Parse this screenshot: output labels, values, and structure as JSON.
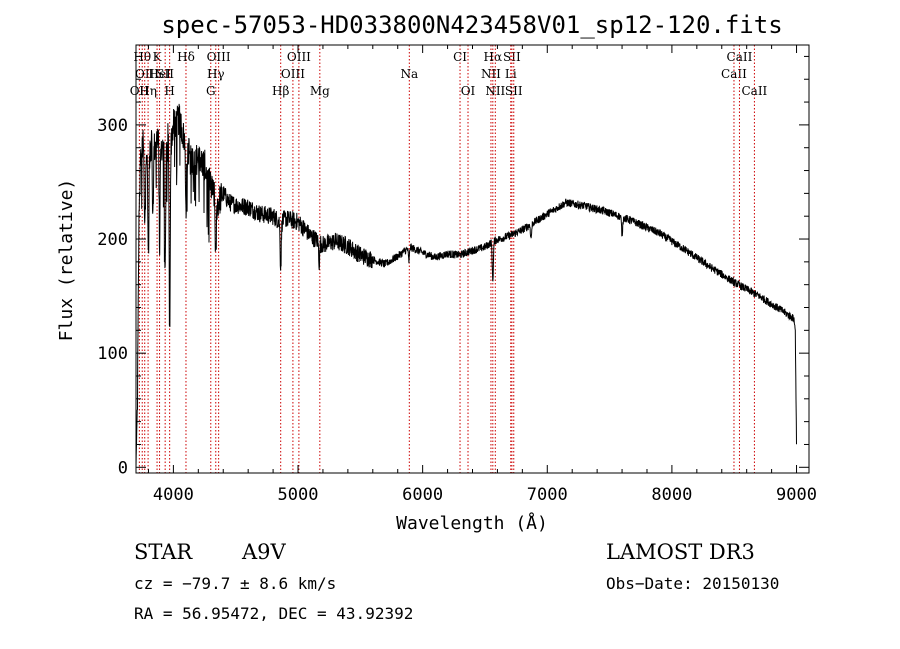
{
  "chart_data": {
    "type": "line",
    "title": "spec-57053-HD033800N423458V01_sp12-120.fits",
    "xlabel": "Wavelength (Å)",
    "ylabel": "Flux (relative)",
    "xlim": [
      3700,
      9100
    ],
    "ylim": [
      -5,
      370
    ],
    "xticks": [
      4000,
      5000,
      6000,
      7000,
      8000,
      9000
    ],
    "yticks": [
      0,
      100,
      200,
      300
    ],
    "spectrum_anchors": [
      [
        3700,
        0
      ],
      [
        3712,
        60
      ],
      [
        3725,
        230
      ],
      [
        3740,
        275
      ],
      [
        3760,
        285
      ],
      [
        3790,
        280
      ],
      [
        3810,
        270
      ],
      [
        3830,
        300
      ],
      [
        3850,
        280
      ],
      [
        3860,
        280
      ],
      [
        3880,
        300
      ],
      [
        3900,
        280
      ],
      [
        3920,
        285
      ],
      [
        3940,
        280
      ],
      [
        3960,
        295
      ],
      [
        3980,
        285
      ],
      [
        4000,
        300
      ],
      [
        4050,
        305
      ],
      [
        4080,
        290
      ],
      [
        4100,
        285
      ],
      [
        4150,
        270
      ],
      [
        4200,
        270
      ],
      [
        4250,
        265
      ],
      [
        4300,
        245
      ],
      [
        4340,
        235
      ],
      [
        4360,
        232
      ],
      [
        4400,
        240
      ],
      [
        4450,
        232
      ],
      [
        4500,
        230
      ],
      [
        4600,
        228
      ],
      [
        4700,
        222
      ],
      [
        4800,
        220
      ],
      [
        4860,
        215
      ],
      [
        4900,
        218
      ],
      [
        5000,
        215
      ],
      [
        5100,
        203
      ],
      [
        5200,
        195
      ],
      [
        5300,
        198
      ],
      [
        5400,
        194
      ],
      [
        5500,
        186
      ],
      [
        5600,
        182
      ],
      [
        5700,
        178
      ],
      [
        5800,
        185
      ],
      [
        5900,
        193
      ],
      [
        6000,
        188
      ],
      [
        6100,
        184
      ],
      [
        6200,
        187
      ],
      [
        6300,
        186
      ],
      [
        6400,
        190
      ],
      [
        6500,
        193
      ],
      [
        6563,
        198
      ],
      [
        6700,
        203
      ],
      [
        6800,
        208
      ],
      [
        7000,
        222
      ],
      [
        7150,
        232
      ],
      [
        7300,
        229
      ],
      [
        7500,
        223
      ],
      [
        7700,
        215
      ],
      [
        7900,
        205
      ],
      [
        8100,
        191
      ],
      [
        8300,
        176
      ],
      [
        8500,
        162
      ],
      [
        8700,
        150
      ],
      [
        8900,
        136
      ],
      [
        8980,
        130
      ],
      [
        8990,
        120
      ],
      [
        9000,
        20
      ]
    ],
    "absorption_features": [
      [
        3770,
        75
      ],
      [
        3798,
        80
      ],
      [
        3835,
        85
      ],
      [
        3889,
        90
      ],
      [
        3934,
        115
      ],
      [
        3970,
        175
      ],
      [
        4101,
        55
      ],
      [
        4340,
        55
      ],
      [
        4861,
        40
      ],
      [
        5170,
        18
      ],
      [
        5890,
        12
      ],
      [
        6563,
        35
      ],
      [
        6870,
        12
      ],
      [
        7600,
        15
      ]
    ],
    "emission_lines": [
      {
        "wavelength": 3727,
        "labels": [
          "OII"
        ],
        "tier": 2
      },
      {
        "wavelength": 3750,
        "labels": [
          "Hθ"
        ],
        "tier": 0
      },
      {
        "wavelength": 3770,
        "labels": [
          "OII"
        ],
        "tier": 1
      },
      {
        "wavelength": 3797,
        "labels": [
          "Hη"
        ],
        "tier": 2
      },
      {
        "wavelength": 3869,
        "labels": [
          "K"
        ],
        "tier": 0
      },
      {
        "wavelength": 3889,
        "labels": [
          "HeI"
        ],
        "tier": 1
      },
      {
        "wavelength": 3934,
        "labels": [
          "SII"
        ],
        "tier": 1
      },
      {
        "wavelength": 3970,
        "labels": [
          "H"
        ],
        "tier": 2
      },
      {
        "wavelength": 4101,
        "labels": [
          "Hδ"
        ],
        "tier": 0
      },
      {
        "wavelength": 4300,
        "labels": [
          "G"
        ],
        "tier": 2
      },
      {
        "wavelength": 4340,
        "labels": [
          "Hγ"
        ],
        "tier": 1
      },
      {
        "wavelength": 4363,
        "labels": [
          "OIII"
        ],
        "tier": 0
      },
      {
        "wavelength": 4861,
        "labels": [
          "Hβ"
        ],
        "tier": 2
      },
      {
        "wavelength": 4959,
        "labels": [
          "OIII"
        ],
        "tier": 1
      },
      {
        "wavelength": 5007,
        "labels": [
          "OIII"
        ],
        "tier": 0
      },
      {
        "wavelength": 5175,
        "labels": [
          "Mg"
        ],
        "tier": 2
      },
      {
        "wavelength": 5893,
        "labels": [
          "Na"
        ],
        "tier": 1
      },
      {
        "wavelength": 6300,
        "labels": [
          "CI"
        ],
        "tier": 0
      },
      {
        "wavelength": 6364,
        "labels": [
          "OI"
        ],
        "tier": 2
      },
      {
        "wavelength": 6548,
        "labels": [
          "NII"
        ],
        "tier": 1
      },
      {
        "wavelength": 6563,
        "labels": [
          "Hα"
        ],
        "tier": 0
      },
      {
        "wavelength": 6583,
        "labels": [
          "NII"
        ],
        "tier": 2
      },
      {
        "wavelength": 6707,
        "labels": [
          "Li"
        ],
        "tier": 1
      },
      {
        "wavelength": 6716,
        "labels": [
          "SII"
        ],
        "tier": 0
      },
      {
        "wavelength": 6731,
        "labels": [
          "SII"
        ],
        "tier": 2
      },
      {
        "wavelength": 8498,
        "labels": [
          "CaII"
        ],
        "tier": 1
      },
      {
        "wavelength": 8542,
        "labels": [
          "CaII"
        ],
        "tier": 0
      },
      {
        "wavelength": 8662,
        "labels": [
          "CaII"
        ],
        "tier": 2
      }
    ]
  },
  "info": {
    "class": "STAR",
    "subclass": "A9V",
    "survey": "LAMOST DR3",
    "cz": "cz = −79.7 ± 8.6 km/s",
    "obs_date": "Obs−Date: 20150130",
    "coords": "RA =  56.95472, DEC =  43.92392"
  },
  "colors": {
    "spectrum": "#000000",
    "line_marker": "#cc0000",
    "axis": "#000000",
    "background": "#ffffff"
  }
}
